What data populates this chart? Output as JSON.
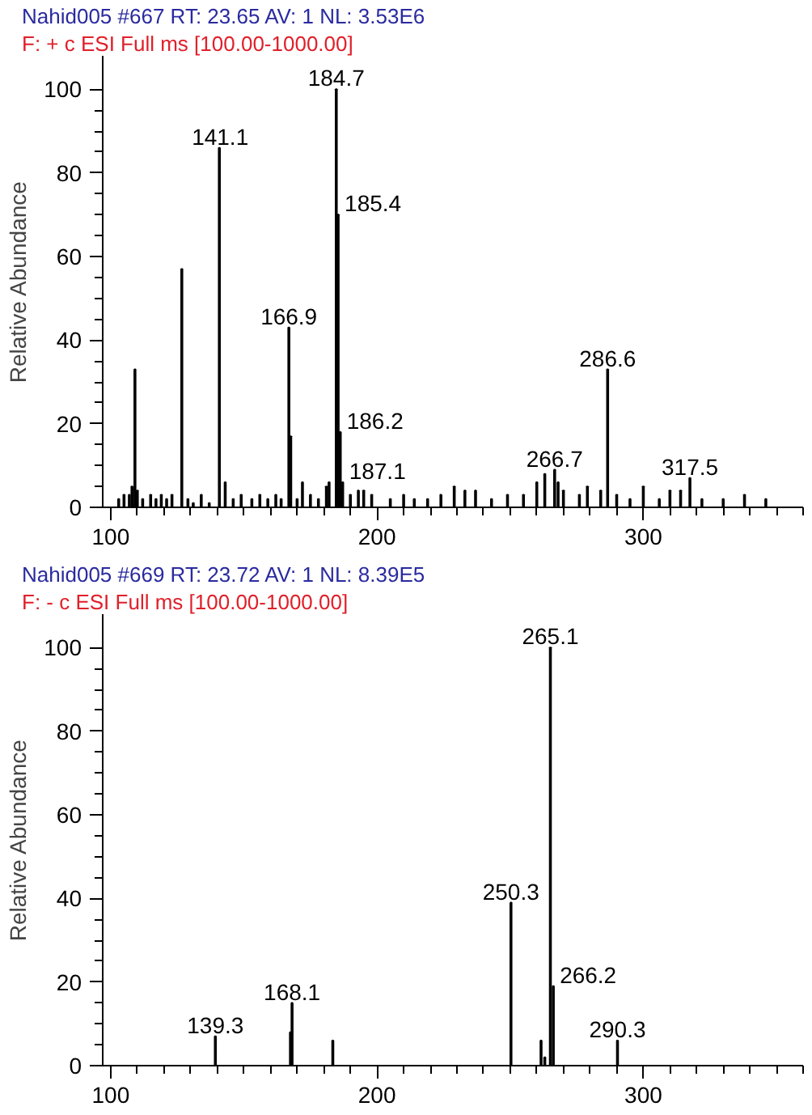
{
  "chart_data": [
    {
      "type": "bar",
      "title": "Nahid005 #667   RT: 23.65   AV: 1   NL: 3.53E6",
      "subtitle": "F: + c ESI Full ms [100.00-1000.00]",
      "ylabel": "Relative Abundance",
      "x": [
        103,
        105,
        107,
        108,
        109.1,
        110,
        112,
        115,
        117,
        119,
        121,
        123,
        126.7,
        129,
        131,
        134,
        137,
        140.8,
        143,
        146,
        149,
        153,
        156,
        159,
        162,
        164,
        166.9,
        167.6,
        170,
        172,
        175,
        178,
        181,
        182,
        184.7,
        185.4,
        186.2,
        187.1,
        190,
        193,
        195,
        198,
        205,
        210,
        214,
        219,
        224,
        229,
        233,
        237,
        243,
        249,
        255,
        260,
        263,
        266.7,
        268,
        270,
        276,
        279,
        284,
        286.6,
        290,
        295,
        300,
        306,
        310,
        314,
        317.5,
        322,
        330,
        338,
        346
      ],
      "values": [
        2,
        3,
        3,
        5,
        33,
        4,
        2,
        3,
        2,
        3,
        2,
        3,
        57,
        2,
        1,
        3,
        1,
        86,
        6,
        2,
        3,
        2,
        3,
        2,
        3,
        2,
        43,
        17,
        2,
        6,
        3,
        2,
        5,
        6,
        100,
        70,
        18,
        6,
        3,
        4,
        4,
        3,
        2,
        3,
        2,
        2,
        3,
        5,
        4,
        4,
        2,
        3,
        3,
        6,
        8,
        9,
        6,
        4,
        3,
        5,
        4,
        33,
        3,
        2,
        5,
        2,
        4,
        4,
        7,
        2,
        2,
        3,
        2
      ],
      "color": "#000000",
      "xlim": [
        97,
        360
      ],
      "ylim": [
        0,
        108
      ],
      "xticks": [
        100,
        200,
        300
      ],
      "yticks": [
        0,
        20,
        40,
        60,
        80,
        100
      ],
      "grid": false,
      "annotations": [
        {
          "text": "141.1",
          "x": 141.1,
          "y": 86
        },
        {
          "text": "184.7",
          "x": 184.7,
          "y": 100
        },
        {
          "text": "185.4",
          "x": 185.4,
          "y": 70
        },
        {
          "text": "166.9",
          "x": 166.9,
          "y": 43
        },
        {
          "text": "186.2",
          "x": 186.2,
          "y": 18
        },
        {
          "text": "187.1",
          "x": 187.1,
          "y": 6
        },
        {
          "text": "286.6",
          "x": 286.6,
          "y": 33
        },
        {
          "text": "266.7",
          "x": 266.7,
          "y": 9
        },
        {
          "text": "317.5",
          "x": 317.5,
          "y": 7
        }
      ]
    },
    {
      "type": "bar",
      "title": "Nahid005 #669   RT: 23.72   AV: 1   NL: 8.39E5",
      "subtitle": "F: - c ESI Full ms [100.00-1000.00]",
      "ylabel": "Relative Abundance",
      "x": [
        139.3,
        167.5,
        168.1,
        183.4,
        250.3,
        261.6,
        263,
        265.1,
        266.2,
        290.3
      ],
      "values": [
        7,
        8,
        15,
        6,
        39,
        6,
        2,
        100,
        19,
        6
      ],
      "color": "#000000",
      "xlim": [
        97,
        360
      ],
      "ylim": [
        0,
        108
      ],
      "xticks": [
        100,
        200,
        300
      ],
      "yticks": [
        0,
        20,
        40,
        60,
        80,
        100
      ],
      "grid": false,
      "annotations": [
        {
          "text": "139.3",
          "x": 139.3,
          "y": 7
        },
        {
          "text": "168.1",
          "x": 168.1,
          "y": 15
        },
        {
          "text": "250.3",
          "x": 250.3,
          "y": 39
        },
        {
          "text": "265.1",
          "x": 265.1,
          "y": 100
        },
        {
          "text": "266.2",
          "x": 266.2,
          "y": 19
        },
        {
          "text": "290.3",
          "x": 290.3,
          "y": 6
        }
      ]
    }
  ]
}
